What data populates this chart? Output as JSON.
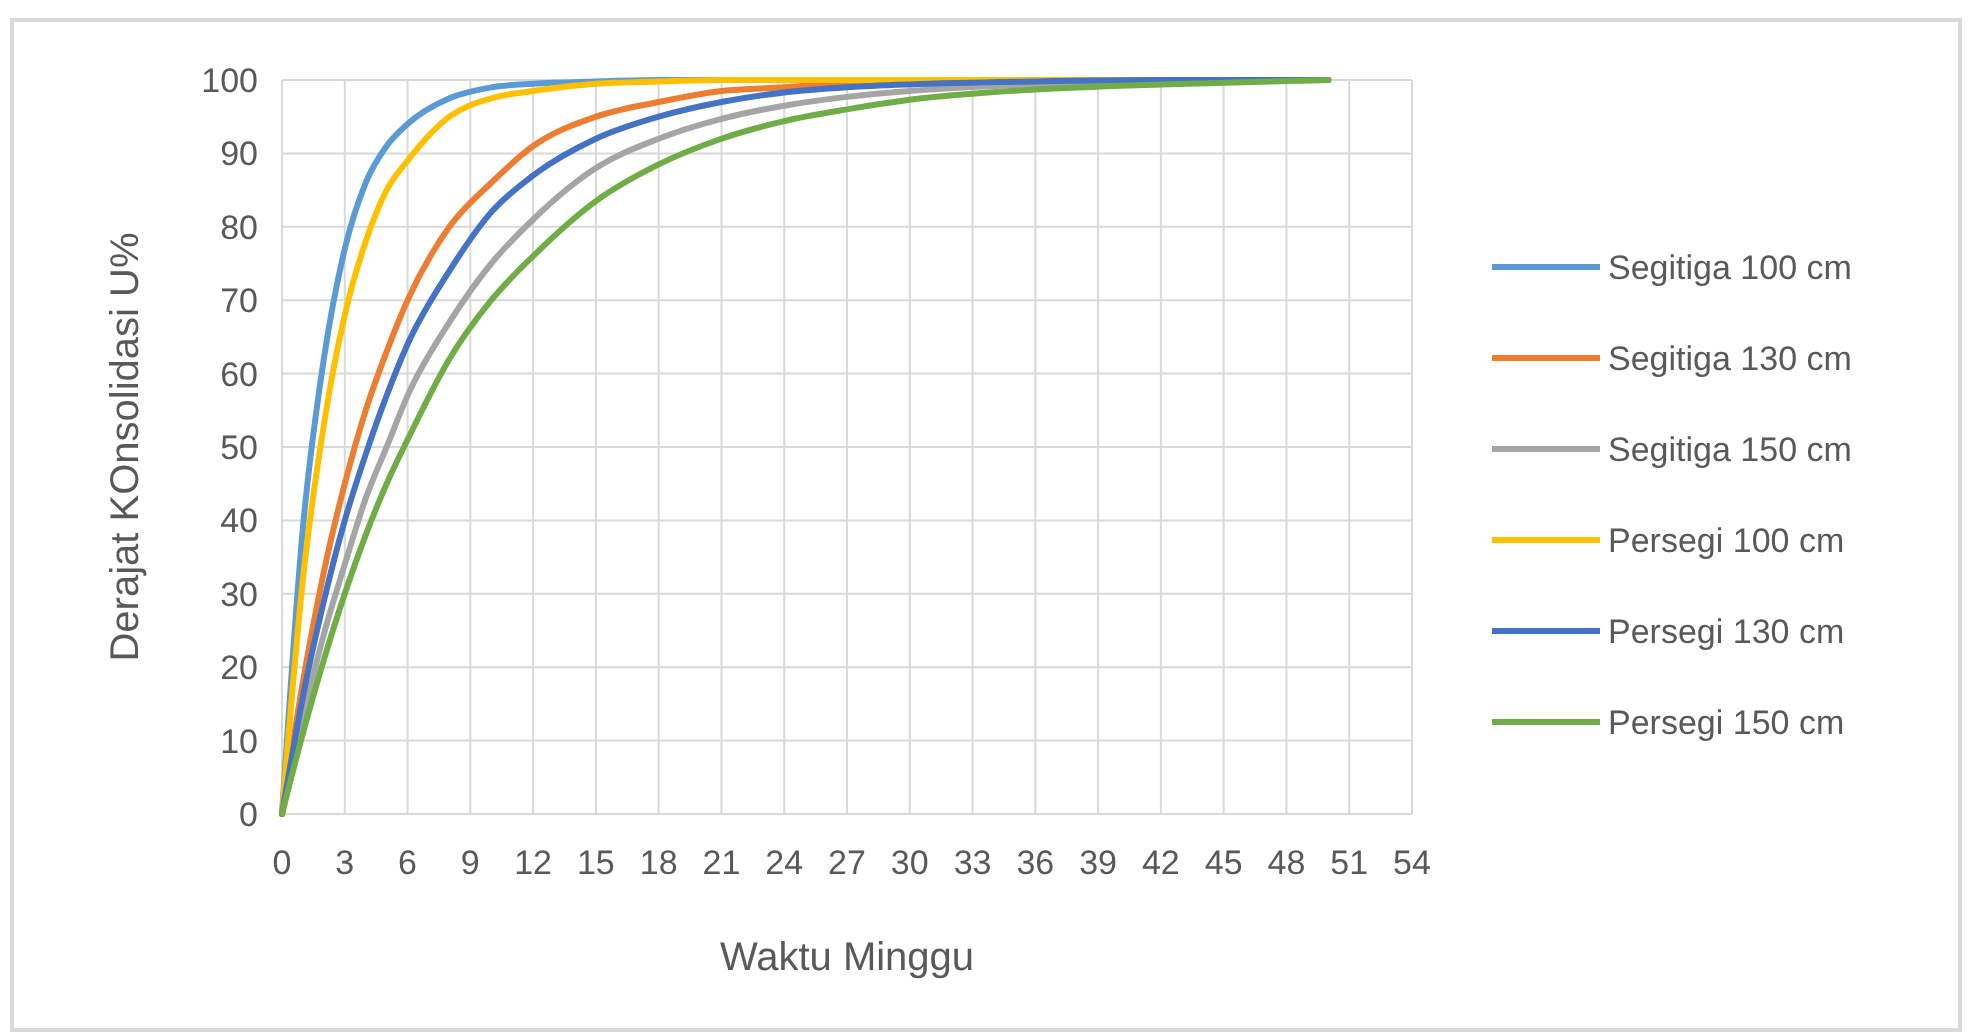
{
  "chart_data": {
    "type": "line",
    "xlabel": "Waktu Minggu",
    "ylabel": "Derajat KOnsolidasi U%",
    "x": [
      0,
      1,
      2,
      3,
      4,
      5,
      6,
      8,
      10,
      12,
      15,
      18,
      21,
      24,
      27,
      30,
      36,
      42,
      50
    ],
    "xlim": [
      0,
      54
    ],
    "xticks": [
      0,
      3,
      6,
      9,
      12,
      15,
      18,
      21,
      24,
      27,
      30,
      33,
      36,
      39,
      42,
      45,
      48,
      51,
      54
    ],
    "ylim": [
      0,
      100
    ],
    "yticks": [
      0,
      10,
      20,
      30,
      40,
      50,
      60,
      70,
      80,
      90,
      100
    ],
    "grid": true,
    "legend": "right",
    "marker": "none",
    "series": [
      {
        "name": "Segitiga 100 cm",
        "color": "#5b9bd5",
        "values": [
          0,
          39,
          62,
          77,
          86,
          91,
          94,
          97.5,
          99,
          99.5,
          99.8,
          100,
          100,
          100,
          100,
          100,
          100,
          100,
          100
        ]
      },
      {
        "name": "Segitiga 130 cm",
        "color": "#ed7d31",
        "values": [
          0,
          18,
          33,
          45,
          55,
          63,
          70,
          80,
          86,
          91,
          95,
          97,
          98.5,
          99,
          99.6,
          99.8,
          null,
          null,
          null
        ]
      },
      {
        "name": "Segitiga 150 cm",
        "color": "#a5a5a5",
        "values": [
          0,
          13,
          24.5,
          34,
          43,
          50,
          57,
          67,
          75,
          81,
          88,
          92,
          94.7,
          96.5,
          97.7,
          98.5,
          99.4,
          99.7,
          100
        ]
      },
      {
        "name": "Persegi 100 cm",
        "color": "#ffc000",
        "values": [
          0,
          32,
          53,
          68,
          78,
          85,
          89,
          95,
          97.5,
          98.5,
          99.5,
          99.8,
          100,
          100,
          100,
          100,
          100,
          100,
          100
        ]
      },
      {
        "name": "Persegi 130 cm",
        "color": "#4472c4",
        "values": [
          0,
          16,
          29,
          40,
          49,
          57,
          64,
          74,
          82,
          87,
          92,
          95,
          97,
          98.3,
          99,
          99.4,
          99.8,
          100,
          100
        ]
      },
      {
        "name": "Persegi 150 cm",
        "color": "#70ad47",
        "values": [
          0,
          11,
          21,
          30,
          38,
          45,
          51,
          62,
          70,
          76,
          83.5,
          88.5,
          92,
          94.4,
          96,
          97.3,
          98.7,
          99.4,
          100
        ]
      }
    ]
  }
}
